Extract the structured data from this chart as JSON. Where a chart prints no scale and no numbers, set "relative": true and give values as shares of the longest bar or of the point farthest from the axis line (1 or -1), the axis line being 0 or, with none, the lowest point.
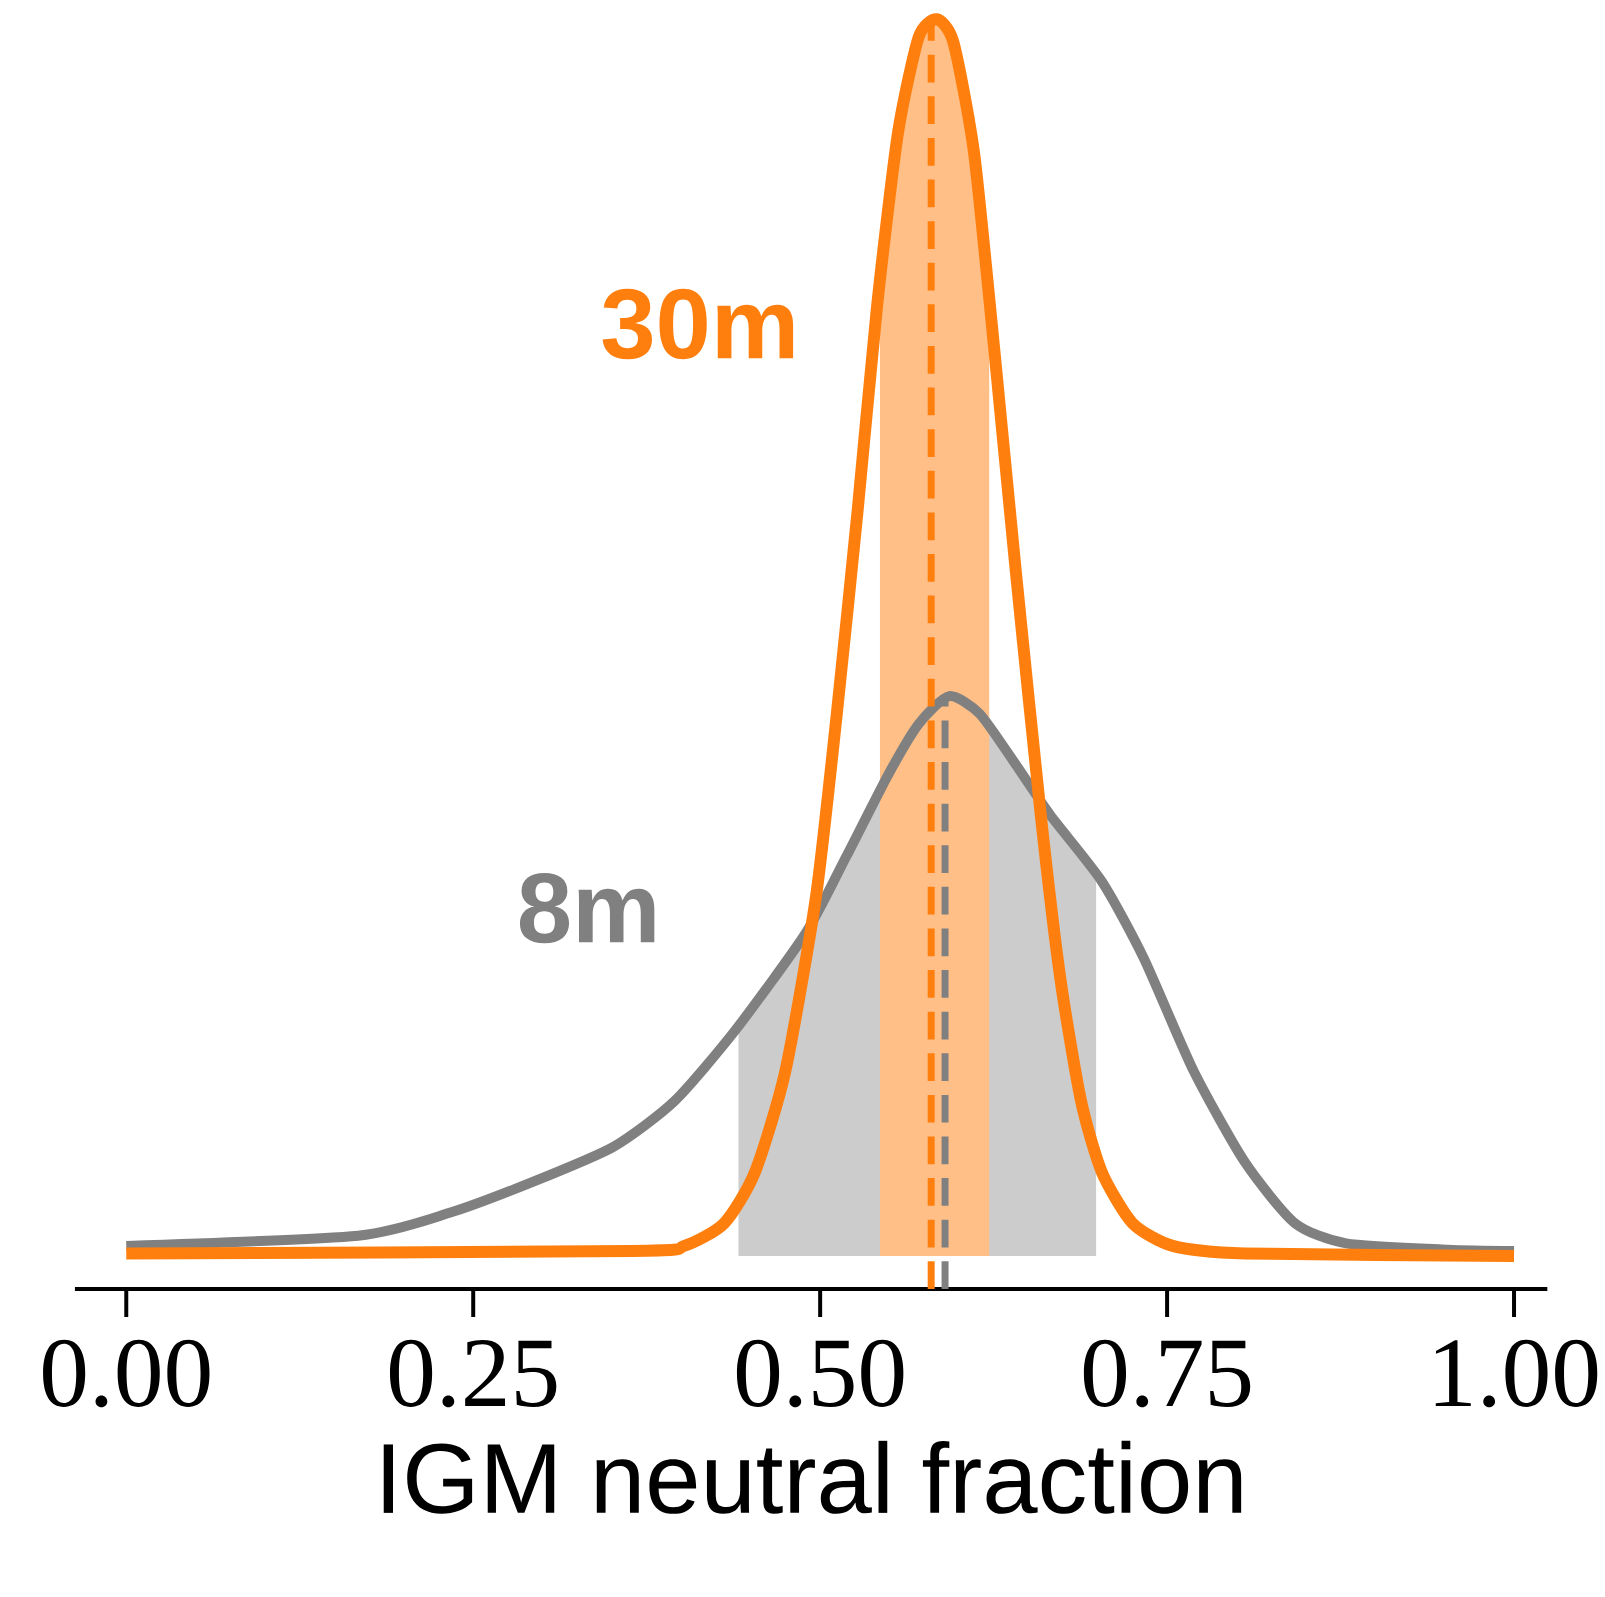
{
  "chart_data": {
    "type": "line",
    "relative": true,
    "xlabel": "IGM neutral fraction",
    "xlim": [
      -0.037,
      1.024
    ],
    "xticks": [
      {
        "value": 0,
        "label": "0.00"
      },
      {
        "value": 0.25,
        "label": "0.25"
      },
      {
        "value": 0.5,
        "label": "0.50"
      },
      {
        "value": 0.75,
        "label": "0.75"
      },
      {
        "value": 1,
        "label": "1.00"
      }
    ],
    "series": [
      {
        "name": "8m",
        "color": "#808080",
        "x": [
          0,
          0.167,
          0.233,
          0.292,
          0.351,
          0.395,
          0.439,
          0.49,
          0.519,
          0.549,
          0.571,
          0.593,
          0.615,
          0.641,
          0.666,
          0.703,
          0.733,
          0.769,
          0.806,
          0.842,
          0.879,
          0.952,
          1.0
        ],
        "values": [
          0.034,
          0.042,
          0.06,
          0.084,
          0.112,
          0.148,
          0.204,
          0.281,
          0.341,
          0.405,
          0.445,
          0.467,
          0.453,
          0.413,
          0.373,
          0.321,
          0.261,
          0.172,
          0.1,
          0.052,
          0.036,
          0.031,
          0.03
        ]
      },
      {
        "name": "30m",
        "color": "#ff7f0e",
        "x": [
          0,
          0.365,
          0.402,
          0.431,
          0.453,
          0.475,
          0.497,
          0.512,
          0.527,
          0.541,
          0.556,
          0.571,
          0.584,
          0.596,
          0.611,
          0.626,
          0.641,
          0.659,
          0.673,
          0.688,
          0.703,
          0.725,
          0.754,
          0.806,
          1.0
        ],
        "values": [
          0.028,
          0.03,
          0.034,
          0.052,
          0.092,
          0.172,
          0.309,
          0.453,
          0.613,
          0.774,
          0.91,
          0.986,
          1,
          0.982,
          0.894,
          0.734,
          0.565,
          0.373,
          0.245,
          0.148,
          0.092,
          0.052,
          0.034,
          0.028,
          0.026
        ]
      }
    ],
    "bands": [
      {
        "axis": "x",
        "from": 0.441,
        "to": 0.699,
        "color": "#cccccc"
      },
      {
        "axis": "x",
        "from": 0.543,
        "to": 0.622,
        "color": "#ffbf87"
      }
    ],
    "ref_lines": [
      {
        "axis": "x",
        "value": 0.59,
        "color": "#808080",
        "line_style": "dashed"
      },
      {
        "axis": "x",
        "value": 0.58,
        "color": "#ff7f0e",
        "line_style": "dashed"
      }
    ]
  }
}
